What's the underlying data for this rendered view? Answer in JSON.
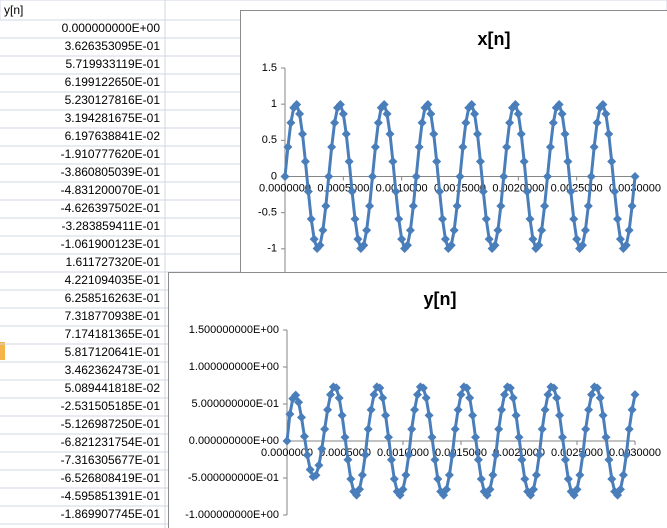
{
  "table": {
    "header": "y[n]",
    "rows": [
      "0.000000000E+00",
      "3.626353095E-01",
      "5.719933119E-01",
      "6.199122650E-01",
      "5.230127816E-01",
      "3.194281675E-01",
      "6.197638841E-02",
      "-1.910777620E-01",
      "-3.860805039E-01",
      "-4.831200070E-01",
      "-4.626397502E-01",
      "-3.283859411E-01",
      "-1.061900123E-01",
      "1.611727320E-01",
      "4.221094035E-01",
      "6.258516263E-01",
      "7.318770938E-01",
      "7.174181365E-01",
      "5.817120641E-01",
      "3.462362473E-01",
      "5.089441818E-02",
      "-2.531505185E-01",
      "-5.126987250E-01",
      "-6.821231754E-01",
      "-7.316305677E-01",
      "-6.526808419E-01",
      "-4.595851391E-01",
      "-1.869907745E-01"
    ]
  },
  "chart_data": [
    {
      "type": "scatter",
      "title": "x[n]",
      "color": "#4a7ebb",
      "x": [
        0,
        2.5e-05,
        5e-05,
        7.5e-05,
        0.0001,
        0.000125,
        0.00015,
        0.000175,
        0.0002,
        0.000225,
        0.00025,
        0.000275,
        0.0003,
        0.000325,
        0.00035,
        0.000375,
        0.0004,
        0.000425,
        0.00045,
        0.000475,
        0.0005,
        0.000525,
        0.00055,
        0.000575,
        0.0006,
        0.000625,
        0.00065,
        0.000675,
        0.0007,
        0.000725,
        0.00075,
        0.000775,
        0.0008,
        0.000825,
        0.00085,
        0.000875,
        0.0009,
        0.000925,
        0.00095,
        0.000975,
        0.001,
        0.001025,
        0.00105,
        0.001075,
        0.0011,
        0.001125,
        0.00115,
        0.001175,
        0.0012,
        0.001225,
        0.00125,
        0.001275,
        0.0013,
        0.001325,
        0.00135,
        0.001375,
        0.0014,
        0.001425,
        0.00145,
        0.001475,
        0.0015,
        0.001525,
        0.00155,
        0.001575,
        0.0016,
        0.001625,
        0.00165,
        0.001675,
        0.0017,
        0.001725,
        0.00175,
        0.001775,
        0.0018,
        0.001825,
        0.00185,
        0.001875,
        0.0019,
        0.001925,
        0.00195,
        0.001975,
        0.002,
        0.002025,
        0.00205,
        0.002075,
        0.0021,
        0.002125,
        0.00215,
        0.002175,
        0.0022,
        0.002225,
        0.00225,
        0.002275,
        0.0023,
        0.002325,
        0.00235,
        0.002375,
        0.0024,
        0.002425,
        0.00245,
        0.002475,
        0.0025,
        0.002525,
        0.00255,
        0.002575,
        0.0026,
        0.002625,
        0.00265,
        0.002675,
        0.0027,
        0.002725,
        0.00275,
        0.002775,
        0.0028,
        0.002825,
        0.00285,
        0.002875,
        0.0029,
        0.002925,
        0.00295,
        0.002975,
        0.003
      ],
      "values": [
        0,
        0.407,
        0.743,
        0.951,
        0.995,
        0.866,
        0.588,
        0.208,
        -0.208,
        -0.588,
        -0.866,
        -0.995,
        -0.951,
        -0.743,
        -0.407,
        0,
        0.407,
        0.743,
        0.951,
        0.995,
        0.866,
        0.588,
        0.208,
        -0.208,
        -0.588,
        -0.866,
        -0.995,
        -0.951,
        -0.743,
        -0.407,
        0,
        0.407,
        0.743,
        0.951,
        0.995,
        0.866,
        0.588,
        0.208,
        -0.208,
        -0.588,
        -0.866,
        -0.995,
        -0.951,
        -0.743,
        -0.407,
        0,
        0.407,
        0.743,
        0.951,
        0.995,
        0.866,
        0.588,
        0.208,
        -0.208,
        -0.588,
        -0.866,
        -0.995,
        -0.951,
        -0.743,
        -0.407,
        0,
        0.407,
        0.743,
        0.951,
        0.995,
        0.866,
        0.588,
        0.208,
        -0.208,
        -0.588,
        -0.866,
        -0.995,
        -0.951,
        -0.743,
        -0.407,
        0,
        0.407,
        0.743,
        0.951,
        0.995,
        0.866,
        0.588,
        0.208,
        -0.208,
        -0.588,
        -0.866,
        -0.995,
        -0.951,
        -0.743,
        -0.407,
        0,
        0.407,
        0.743,
        0.951,
        0.995,
        0.866,
        0.588,
        0.208,
        -0.208,
        -0.588,
        -0.866,
        -0.995,
        -0.951,
        -0.743,
        -0.407,
        0,
        0.407,
        0.743,
        0.951,
        0.995,
        0.866,
        0.588,
        0.208,
        -0.208,
        -0.588,
        -0.866,
        -0.995,
        -0.951,
        -0.743,
        -0.407,
        0
      ],
      "xlim": [
        0,
        0.003
      ],
      "xticks": [
        {
          "value": 0,
          "label": "0.0000000"
        },
        {
          "value": 0.0005,
          "label": "0.0005000"
        },
        {
          "value": 0.001,
          "label": "0.0010000"
        },
        {
          "value": 0.0015,
          "label": "0.0015000"
        },
        {
          "value": 0.002,
          "label": "0.0020000"
        },
        {
          "value": 0.0025,
          "label": "0.0025000"
        },
        {
          "value": 0.003,
          "label": "0.0030000"
        }
      ],
      "ylim": [
        -1.5,
        1.5
      ],
      "yticks": [
        1.5,
        1,
        0.5,
        0,
        -0.5,
        -1
      ],
      "grid": false
    },
    {
      "type": "scatter",
      "title": "y[n]",
      "color": "#4a7ebb",
      "x": [
        0,
        2.5e-05,
        5e-05,
        7.5e-05,
        0.0001,
        0.000125,
        0.00015,
        0.000175,
        0.0002,
        0.000225,
        0.00025,
        0.000275,
        0.0003,
        0.000325,
        0.00035,
        0.000375,
        0.0004,
        0.000425,
        0.00045,
        0.000475,
        0.0005,
        0.000525,
        0.00055,
        0.000575,
        0.0006,
        0.000625,
        0.00065,
        0.000675,
        0.0007,
        0.000725,
        0.00075,
        0.000775,
        0.0008,
        0.000825,
        0.00085,
        0.000875,
        0.0009,
        0.000925,
        0.00095,
        0.000975,
        0.001,
        0.001025,
        0.00105,
        0.001075,
        0.0011,
        0.001125,
        0.00115,
        0.001175,
        0.0012,
        0.001225,
        0.00125,
        0.001275,
        0.0013,
        0.001325,
        0.00135,
        0.001375,
        0.0014,
        0.001425,
        0.00145,
        0.001475,
        0.0015,
        0.001525,
        0.00155,
        0.001575,
        0.0016,
        0.001625,
        0.00165,
        0.001675,
        0.0017,
        0.001725,
        0.00175,
        0.001775,
        0.0018,
        0.001825,
        0.00185,
        0.001875,
        0.0019,
        0.001925,
        0.00195,
        0.001975,
        0.002,
        0.002025,
        0.00205,
        0.002075,
        0.0021,
        0.002125,
        0.00215,
        0.002175,
        0.0022,
        0.002225,
        0.00225,
        0.002275,
        0.0023,
        0.002325,
        0.00235,
        0.002375,
        0.0024,
        0.002425,
        0.00245,
        0.002475,
        0.0025,
        0.002525,
        0.00255,
        0.002575,
        0.0026,
        0.002625,
        0.00265,
        0.002675,
        0.0027,
        0.002725,
        0.00275,
        0.002775,
        0.0028,
        0.002825,
        0.00285,
        0.002875,
        0.0029,
        0.002925,
        0.00295,
        0.002975,
        0.003
      ],
      "values": [
        0,
        0.3626,
        0.572,
        0.6199,
        0.523,
        0.3194,
        0.062,
        -0.1911,
        -0.3861,
        -0.4831,
        -0.4626,
        -0.3284,
        -0.1062,
        0.1612,
        0.4221,
        0.6259,
        0.7319,
        0.7174,
        0.5817,
        0.3462,
        0.0509,
        -0.2532,
        -0.5127,
        -0.6821,
        -0.7316,
        -0.6527,
        -0.4596,
        -0.187,
        0.161,
        0.422,
        0.626,
        0.732,
        0.717,
        0.582,
        0.346,
        0.051,
        -0.253,
        -0.513,
        -0.682,
        -0.732,
        -0.653,
        -0.46,
        -0.187,
        0.161,
        0.422,
        0.626,
        0.732,
        0.717,
        0.582,
        0.346,
        0.051,
        -0.253,
        -0.513,
        -0.682,
        -0.732,
        -0.653,
        -0.46,
        -0.187,
        0.161,
        0.422,
        0.626,
        0.732,
        0.717,
        0.582,
        0.346,
        0.051,
        -0.253,
        -0.513,
        -0.682,
        -0.732,
        -0.653,
        -0.46,
        -0.187,
        0.161,
        0.422,
        0.626,
        0.732,
        0.717,
        0.582,
        0.346,
        0.051,
        -0.253,
        -0.513,
        -0.682,
        -0.732,
        -0.653,
        -0.46,
        -0.187,
        0.161,
        0.422,
        0.626,
        0.732,
        0.717,
        0.582,
        0.346,
        0.051,
        -0.253,
        -0.513,
        -0.682,
        -0.732,
        -0.653,
        -0.46,
        -0.187,
        0.161,
        0.422,
        0.626,
        0.732,
        0.717,
        0.582,
        0.346,
        0.051,
        -0.253,
        -0.513,
        -0.682,
        -0.732,
        -0.653,
        -0.46,
        -0.187,
        0.161,
        0.422,
        0.626
      ],
      "xlim": [
        0,
        0.003
      ],
      "xticks": [
        {
          "value": 0,
          "label": "0.0000000"
        },
        {
          "value": 0.0005,
          "label": "0.0005000"
        },
        {
          "value": 0.001,
          "label": "0.0010000"
        },
        {
          "value": 0.0015,
          "label": "0.0015000"
        },
        {
          "value": 0.002,
          "label": "0.0020000"
        },
        {
          "value": 0.0025,
          "label": "0.0025000"
        },
        {
          "value": 0.003,
          "label": "0.0030000"
        }
      ],
      "ylim": [
        -1,
        1.5
      ],
      "yticks": [
        {
          "value": 1.5,
          "label": "1.500000000E+00"
        },
        {
          "value": 1,
          "label": "1.000000000E+00"
        },
        {
          "value": 0.5,
          "label": "5.000000000E-01"
        },
        {
          "value": 0,
          "label": "0.000000000E+00"
        },
        {
          "value": -0.5,
          "label": "-5.000000000E-01"
        },
        {
          "value": -1,
          "label": "-1.000000000E+00"
        }
      ],
      "grid": false
    }
  ]
}
